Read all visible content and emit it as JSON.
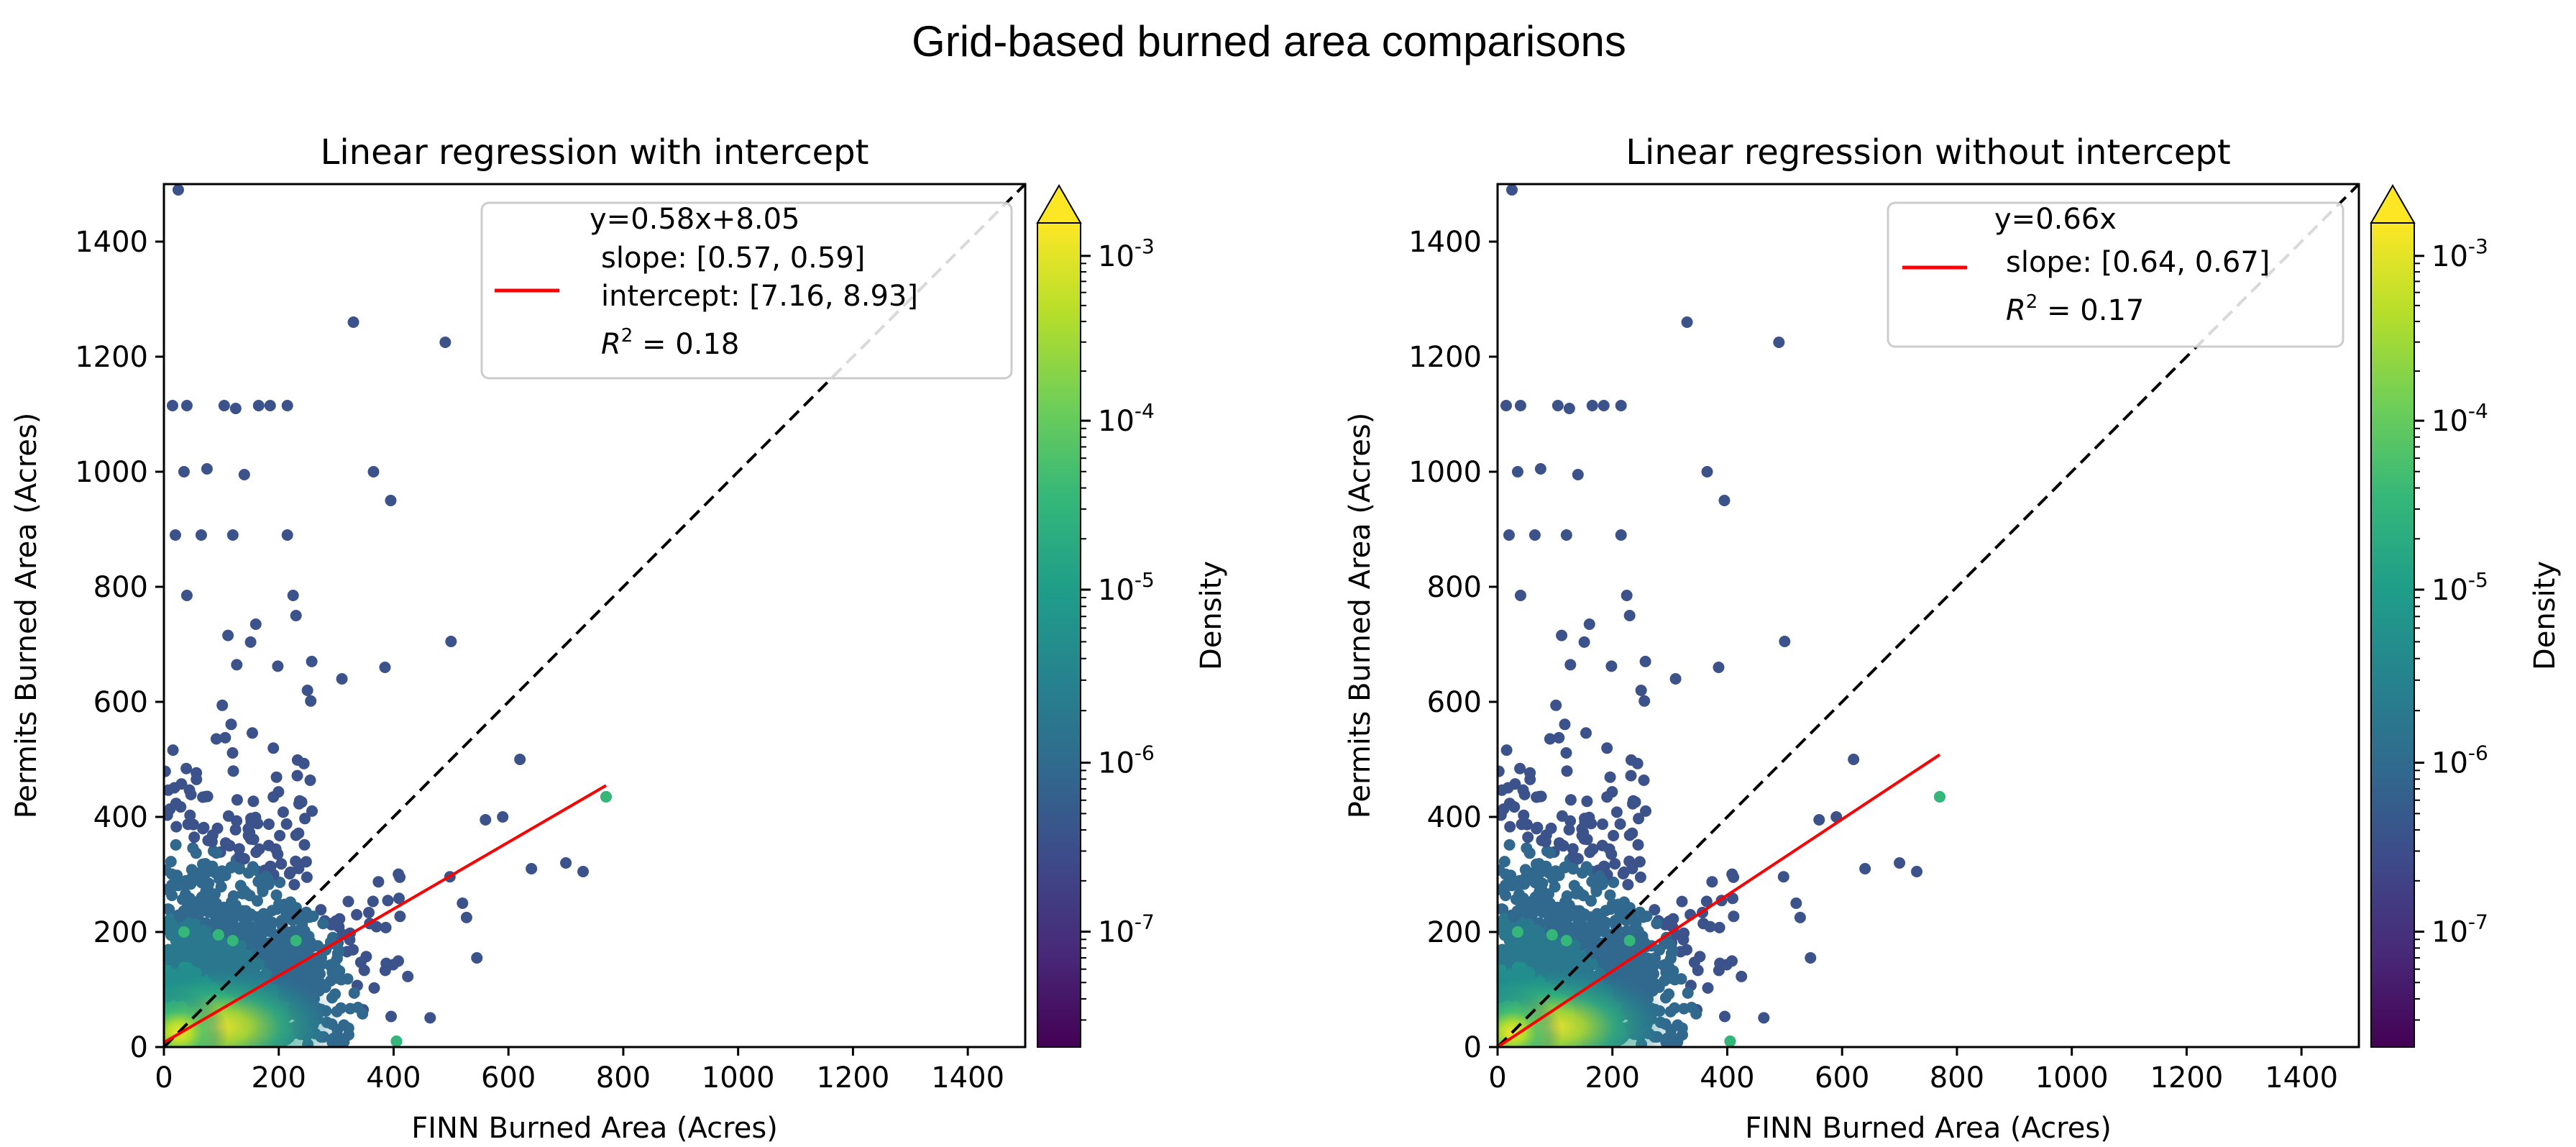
{
  "figure_title": "Grid-based burned area comparisons",
  "colors": {
    "regression": "#ff0000",
    "identity": "#000000",
    "viridis": [
      "#440154",
      "#482878",
      "#3e4989",
      "#31688e",
      "#26828e",
      "#1f9e89",
      "#35b779",
      "#6ece58",
      "#b5de2b",
      "#fde725"
    ]
  },
  "chart_data": [
    {
      "type": "scatter",
      "title": "Linear regression with intercept",
      "xlabel": "FINN Burned Area (Acres)",
      "ylabel": "Permits Burned Area (Acres)",
      "xlim": [
        0,
        1500
      ],
      "ylim": [
        0,
        1500
      ],
      "xticks": [
        "0",
        "200",
        "400",
        "600",
        "800",
        "1000",
        "1200",
        "1400"
      ],
      "yticks": [
        "0",
        "200",
        "400",
        "600",
        "800",
        "1000",
        "1200",
        "1400"
      ],
      "fit": {
        "slope": 0.58,
        "intercept": 8.05,
        "x_range": [
          0,
          770
        ]
      },
      "identity_line": [
        [
          0,
          0
        ],
        [
          1500,
          1500
        ]
      ],
      "legend": {
        "equation": "y=0.58x+8.05",
        "slope": "slope: [0.57, 0.59]",
        "intercept": "intercept: [7.16, 8.93]",
        "r2_label": "R",
        "r2_exp": "2",
        "r2_value": " = 0.18"
      },
      "colorbar": {
        "label": "Density",
        "exps": [
          "-3",
          "-4",
          "-5",
          "-6",
          "-7"
        ],
        "base": "10",
        "extend": "max"
      },
      "outliers": [
        [
          25,
          1490
        ],
        [
          330,
          1260
        ],
        [
          490,
          1225
        ],
        [
          15,
          1115
        ],
        [
          40,
          1115
        ],
        [
          105,
          1115
        ],
        [
          125,
          1110
        ],
        [
          165,
          1115
        ],
        [
          185,
          1115
        ],
        [
          215,
          1115
        ],
        [
          365,
          1000
        ],
        [
          35,
          1000
        ],
        [
          75,
          1005
        ],
        [
          140,
          995
        ],
        [
          395,
          950
        ],
        [
          20,
          890
        ],
        [
          65,
          890
        ],
        [
          120,
          890
        ],
        [
          215,
          890
        ],
        [
          40,
          785
        ],
        [
          225,
          785
        ],
        [
          160,
          735
        ],
        [
          230,
          750
        ],
        [
          500,
          705
        ],
        [
          385,
          660
        ],
        [
          250,
          620
        ],
        [
          310,
          640
        ],
        [
          620,
          500
        ],
        [
          560,
          395
        ],
        [
          590,
          400
        ],
        [
          640,
          310
        ],
        [
          700,
          320
        ],
        [
          730,
          305
        ],
        [
          520,
          250
        ],
        [
          545,
          155
        ],
        [
          770,
          435
        ],
        [
          405,
          10
        ],
        [
          120,
          185
        ]
      ],
      "highlights": [
        [
          770,
          435
        ],
        [
          405,
          10
        ],
        [
          120,
          185
        ],
        [
          35,
          200
        ],
        [
          95,
          195
        ],
        [
          230,
          185
        ]
      ]
    },
    {
      "type": "scatter",
      "title": "Linear regression without intercept",
      "xlabel": "FINN Burned Area (Acres)",
      "ylabel": "Permits Burned Area (Acres)",
      "xlim": [
        0,
        1500
      ],
      "ylim": [
        0,
        1500
      ],
      "xticks": [
        "0",
        "200",
        "400",
        "600",
        "800",
        "1000",
        "1200",
        "1400"
      ],
      "yticks": [
        "0",
        "200",
        "400",
        "600",
        "800",
        "1000",
        "1200",
        "1400"
      ],
      "fit": {
        "slope": 0.66,
        "intercept": 0,
        "x_range": [
          0,
          770
        ]
      },
      "identity_line": [
        [
          0,
          0
        ],
        [
          1500,
          1500
        ]
      ],
      "legend": {
        "equation": "y=0.66x",
        "slope": "slope: [0.64, 0.67]",
        "r2_label": "R",
        "r2_exp": "2",
        "r2_value": " = 0.17"
      },
      "colorbar": {
        "label": "Density",
        "exps": [
          "-3",
          "-4",
          "-5",
          "-6",
          "-7"
        ],
        "base": "10",
        "extend": "max"
      },
      "outliers": [
        [
          25,
          1490
        ],
        [
          330,
          1260
        ],
        [
          490,
          1225
        ],
        [
          15,
          1115
        ],
        [
          40,
          1115
        ],
        [
          105,
          1115
        ],
        [
          125,
          1110
        ],
        [
          165,
          1115
        ],
        [
          185,
          1115
        ],
        [
          215,
          1115
        ],
        [
          365,
          1000
        ],
        [
          35,
          1000
        ],
        [
          75,
          1005
        ],
        [
          140,
          995
        ],
        [
          395,
          950
        ],
        [
          20,
          890
        ],
        [
          65,
          890
        ],
        [
          120,
          890
        ],
        [
          215,
          890
        ],
        [
          40,
          785
        ],
        [
          225,
          785
        ],
        [
          160,
          735
        ],
        [
          230,
          750
        ],
        [
          500,
          705
        ],
        [
          385,
          660
        ],
        [
          250,
          620
        ],
        [
          310,
          640
        ],
        [
          620,
          500
        ],
        [
          560,
          395
        ],
        [
          590,
          400
        ],
        [
          640,
          310
        ],
        [
          700,
          320
        ],
        [
          730,
          305
        ],
        [
          520,
          250
        ],
        [
          545,
          155
        ],
        [
          770,
          435
        ],
        [
          405,
          10
        ],
        [
          120,
          185
        ]
      ],
      "highlights": [
        [
          770,
          435
        ],
        [
          405,
          10
        ],
        [
          120,
          185
        ],
        [
          35,
          200
        ],
        [
          95,
          195
        ],
        [
          230,
          185
        ]
      ]
    }
  ]
}
